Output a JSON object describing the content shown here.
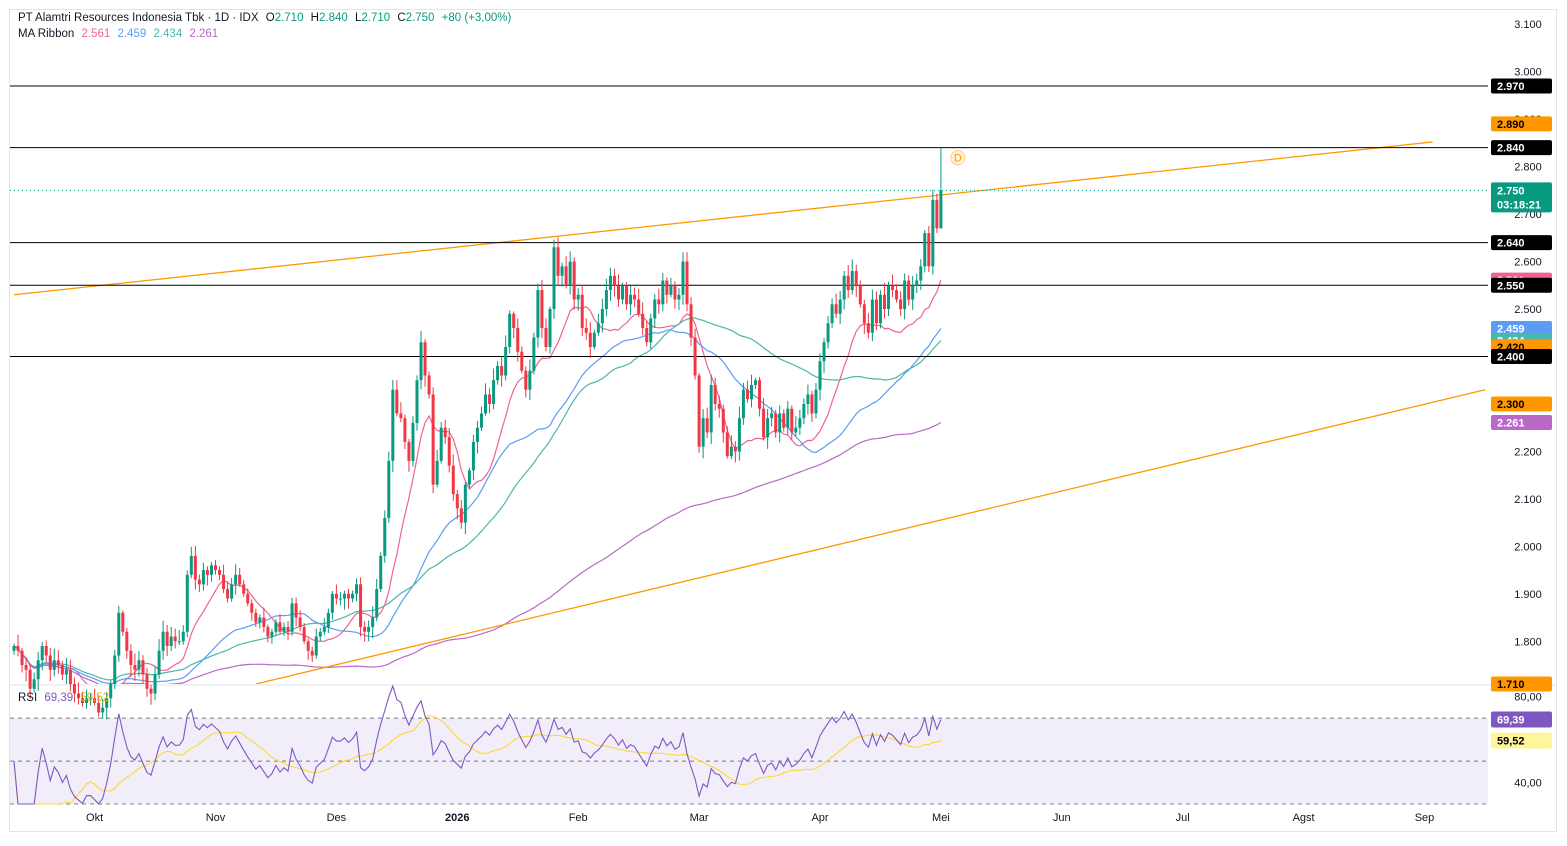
{
  "header": {
    "symbol": "PT Alamtri Resources Indonesia Tbk · 1D · IDX",
    "open_label": "O",
    "open": "2.710",
    "high_label": "H",
    "high": "2.840",
    "low_label": "L",
    "low": "2.710",
    "close_label": "C",
    "close": "2.750",
    "change": "+80 (+3,00%)",
    "ma_label": "MA Ribbon",
    "ma_values": [
      "2.561",
      "2.459",
      "2.434",
      "2.261"
    ]
  },
  "rsi_header": {
    "label": "RSI",
    "values": [
      "69,39",
      "59,52"
    ]
  },
  "colors": {
    "up": "#089981",
    "down": "#f23645",
    "ma1": "#f06292",
    "ma2": "#5b9cf6",
    "ma3": "#4db6ac",
    "ma4": "#ba68c8",
    "trend": "#ff9800",
    "rsi": "#7e57c2",
    "rsi_ma": "#fdd835"
  },
  "chart_data": {
    "type": "candlestick",
    "instrument": "PT Alamtri Resources Indonesia Tbk",
    "timeframe": "1D",
    "exchange": "IDX",
    "ylim": [
      1.71,
      3.13
    ],
    "y_ticks": [
      "3.100",
      "3.000",
      "2.900",
      "2.800",
      "2.700",
      "2.600",
      "2.500",
      "2.200",
      "2.100",
      "2.000",
      "1.900",
      "1.800"
    ],
    "y_tick_values": [
      3.1,
      3.0,
      2.9,
      2.8,
      2.7,
      2.6,
      2.5,
      2.2,
      2.1,
      2.0,
      1.9,
      1.8
    ],
    "x_labels": [
      "Okt",
      "Nov",
      "Des",
      "2026",
      "Feb",
      "Mar",
      "Apr",
      "Mei",
      "Jun",
      "Jul",
      "Agst",
      "Sep"
    ],
    "x_label_index": [
      20,
      50,
      80,
      110,
      140,
      170,
      200,
      230,
      260,
      290,
      320,
      350
    ],
    "horizontal_levels": [
      2.97,
      2.84,
      2.64,
      2.55,
      2.4
    ],
    "horizontal_level_labels": [
      "2.970",
      "2.840",
      "2.640",
      "2.550",
      "2.400"
    ],
    "price_tags": [
      {
        "text": "2.970",
        "value": 2.97,
        "bg": "#000000",
        "fg": "#ffffff"
      },
      {
        "text": "2.890",
        "value": 2.89,
        "bg": "#ff9800",
        "fg": "#000000"
      },
      {
        "text": "2.840",
        "value": 2.84,
        "bg": "#000000",
        "fg": "#ffffff"
      },
      {
        "text": "2.640",
        "value": 2.64,
        "bg": "#000000",
        "fg": "#ffffff"
      },
      {
        "text": "2.561",
        "value": 2.561,
        "bg": "#f06292",
        "fg": "#ffffff"
      },
      {
        "text": "2.550",
        "value": 2.55,
        "bg": "#000000",
        "fg": "#ffffff"
      },
      {
        "text": "2.459",
        "value": 2.459,
        "bg": "#5b9cf6",
        "fg": "#ffffff"
      },
      {
        "text": "2.434",
        "value": 2.434,
        "bg": "#4db6ac",
        "fg": "#ffffff"
      },
      {
        "text": "2.420",
        "value": 2.42,
        "bg": "#ff9800",
        "fg": "#000000"
      },
      {
        "text": "2.400",
        "value": 2.4,
        "bg": "#000000",
        "fg": "#ffffff"
      },
      {
        "text": "2.300",
        "value": 2.3,
        "bg": "#ff9800",
        "fg": "#000000"
      },
      {
        "text": "2.261",
        "value": 2.261,
        "bg": "#ba68c8",
        "fg": "#ffffff"
      },
      {
        "text": "1.710",
        "value": 1.71,
        "bg": "#ff9800",
        "fg": "#000000"
      }
    ],
    "last_price": {
      "text": "2.750",
      "countdown": "03:18:21",
      "value": 2.75
    },
    "event_marker": "D",
    "trendlines": [
      {
        "name": "upper",
        "from": [
          0,
          2.53
        ],
        "to": [
          352,
          2.852
        ]
      },
      {
        "name": "lower",
        "from": [
          60,
          1.71
        ],
        "to": [
          365,
          2.33
        ]
      }
    ],
    "closes": [
      1.79,
      1.78,
      1.75,
      1.74,
      1.7,
      1.72,
      1.76,
      1.79,
      1.77,
      1.74,
      1.76,
      1.75,
      1.73,
      1.74,
      1.71,
      1.69,
      1.68,
      1.67,
      1.68,
      1.68,
      1.67,
      1.65,
      1.66,
      1.68,
      1.71,
      1.77,
      1.86,
      1.82,
      1.78,
      1.75,
      1.74,
      1.76,
      1.73,
      1.7,
      1.69,
      1.73,
      1.78,
      1.82,
      1.79,
      1.81,
      1.8,
      1.8,
      1.82,
      1.94,
      1.98,
      1.93,
      1.92,
      1.95,
      1.94,
      1.96,
      1.95,
      1.94,
      1.91,
      1.89,
      1.92,
      1.94,
      1.92,
      1.9,
      1.88,
      1.86,
      1.84,
      1.85,
      1.83,
      1.81,
      1.82,
      1.84,
      1.82,
      1.83,
      1.82,
      1.88,
      1.85,
      1.83,
      1.8,
      1.78,
      1.77,
      1.81,
      1.82,
      1.83,
      1.86,
      1.9,
      1.89,
      1.89,
      1.9,
      1.89,
      1.9,
      1.92,
      1.83,
      1.82,
      1.83,
      1.85,
      1.91,
      1.98,
      2.06,
      2.18,
      2.33,
      2.28,
      2.27,
      2.22,
      2.18,
      2.26,
      2.35,
      2.43,
      2.36,
      2.32,
      2.13,
      2.18,
      2.25,
      2.23,
      2.17,
      2.11,
      2.08,
      2.05,
      2.13,
      2.16,
      2.22,
      2.25,
      2.28,
      2.32,
      2.3,
      2.35,
      2.38,
      2.36,
      2.42,
      2.49,
      2.46,
      2.41,
      2.37,
      2.33,
      2.37,
      2.44,
      2.54,
      2.46,
      2.42,
      2.5,
      2.63,
      2.57,
      2.59,
      2.55,
      2.6,
      2.52,
      2.53,
      2.46,
      2.45,
      2.42,
      2.45,
      2.47,
      2.5,
      2.54,
      2.57,
      2.55,
      2.52,
      2.55,
      2.51,
      2.53,
      2.52,
      2.49,
      2.46,
      2.43,
      2.48,
      2.52,
      2.51,
      2.56,
      2.53,
      2.55,
      2.52,
      2.53,
      2.6,
      2.51,
      2.44,
      2.36,
      2.21,
      2.27,
      2.24,
      2.34,
      2.3,
      2.29,
      2.24,
      2.19,
      2.21,
      2.2,
      2.27,
      2.33,
      2.31,
      2.34,
      2.35,
      2.29,
      2.23,
      2.27,
      2.28,
      2.24,
      2.28,
      2.25,
      2.29,
      2.24,
      2.25,
      2.27,
      2.3,
      2.32,
      2.28,
      2.33,
      2.39,
      2.43,
      2.47,
      2.51,
      2.49,
      2.52,
      2.57,
      2.54,
      2.58,
      2.55,
      2.51,
      2.47,
      2.45,
      2.52,
      2.47,
      2.53,
      2.5,
      2.55,
      2.54,
      2.52,
      2.5,
      2.56,
      2.52,
      2.55,
      2.56,
      2.59,
      2.66,
      2.59,
      2.73,
      2.67,
      2.75
    ],
    "opens": [
      1.78,
      1.79,
      1.78,
      1.75,
      1.74,
      1.7,
      1.72,
      1.76,
      1.79,
      1.77,
      1.74,
      1.76,
      1.75,
      1.73,
      1.74,
      1.71,
      1.69,
      1.68,
      1.67,
      1.68,
      1.68,
      1.67,
      1.65,
      1.66,
      1.68,
      1.71,
      1.77,
      1.86,
      1.82,
      1.78,
      1.75,
      1.74,
      1.76,
      1.73,
      1.7,
      1.69,
      1.73,
      1.78,
      1.82,
      1.79,
      1.81,
      1.8,
      1.8,
      1.82,
      1.94,
      1.98,
      1.93,
      1.92,
      1.95,
      1.94,
      1.96,
      1.95,
      1.94,
      1.91,
      1.89,
      1.92,
      1.94,
      1.92,
      1.9,
      1.88,
      1.86,
      1.84,
      1.85,
      1.83,
      1.81,
      1.82,
      1.84,
      1.82,
      1.83,
      1.82,
      1.88,
      1.85,
      1.83,
      1.8,
      1.78,
      1.77,
      1.81,
      1.82,
      1.83,
      1.86,
      1.9,
      1.89,
      1.89,
      1.9,
      1.89,
      1.9,
      1.92,
      1.83,
      1.82,
      1.83,
      1.85,
      1.91,
      1.98,
      2.06,
      2.18,
      2.33,
      2.28,
      2.27,
      2.22,
      2.18,
      2.26,
      2.35,
      2.43,
      2.36,
      2.32,
      2.13,
      2.18,
      2.25,
      2.23,
      2.17,
      2.11,
      2.08,
      2.05,
      2.13,
      2.16,
      2.22,
      2.25,
      2.28,
      2.32,
      2.3,
      2.35,
      2.38,
      2.36,
      2.42,
      2.49,
      2.46,
      2.41,
      2.37,
      2.33,
      2.37,
      2.44,
      2.54,
      2.46,
      2.42,
      2.5,
      2.63,
      2.57,
      2.59,
      2.55,
      2.6,
      2.52,
      2.53,
      2.46,
      2.45,
      2.42,
      2.45,
      2.47,
      2.5,
      2.54,
      2.57,
      2.55,
      2.52,
      2.55,
      2.51,
      2.53,
      2.52,
      2.49,
      2.46,
      2.43,
      2.48,
      2.52,
      2.51,
      2.56,
      2.53,
      2.55,
      2.52,
      2.53,
      2.6,
      2.51,
      2.44,
      2.36,
      2.21,
      2.27,
      2.24,
      2.34,
      2.3,
      2.29,
      2.24,
      2.19,
      2.21,
      2.2,
      2.27,
      2.33,
      2.31,
      2.34,
      2.35,
      2.29,
      2.23,
      2.27,
      2.28,
      2.24,
      2.28,
      2.25,
      2.29,
      2.24,
      2.25,
      2.27,
      2.3,
      2.32,
      2.28,
      2.33,
      2.39,
      2.43,
      2.47,
      2.51,
      2.49,
      2.52,
      2.57,
      2.54,
      2.58,
      2.55,
      2.51,
      2.47,
      2.45,
      2.52,
      2.47,
      2.53,
      2.5,
      2.55,
      2.54,
      2.52,
      2.5,
      2.56,
      2.52,
      2.55,
      2.56,
      2.59,
      2.66,
      2.59,
      2.73,
      2.67,
      2.71
    ],
    "last_bar_high": 2.84,
    "ma_ribbon_last": {
      "ma1": 2.561,
      "ma2": 2.459,
      "ma3": 2.434,
      "ma4": 2.261
    },
    "rsi": {
      "ylim": [
        30,
        85
      ],
      "ticks": [
        "80,00",
        "40,00"
      ],
      "tick_values": [
        80,
        40
      ],
      "bands": [
        70,
        50,
        30
      ],
      "last": "69,39",
      "last_ma": "59,52"
    }
  }
}
